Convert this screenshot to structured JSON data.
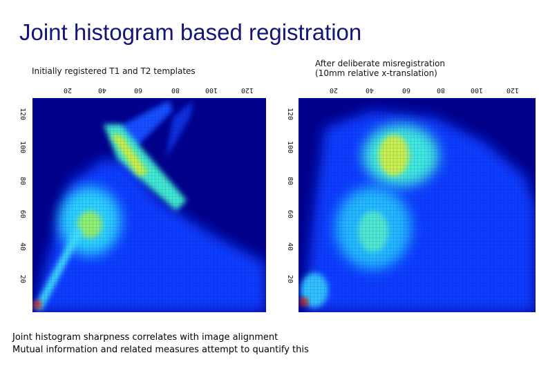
{
  "title": "Joint histogram based registration",
  "panels": [
    {
      "caption": [
        "Initially registered T1 and T2 templates"
      ],
      "top_ticks": [
        20,
        40,
        60,
        80,
        100,
        120
      ],
      "side_ticks": [
        120,
        100,
        80,
        60,
        40,
        20
      ]
    },
    {
      "caption": [
        "After deliberate misregistration",
        "(10mm relative x-translation)"
      ],
      "top_ticks": [
        20,
        40,
        60,
        80,
        100,
        120
      ],
      "side_ticks": [
        120,
        100,
        80,
        60,
        40,
        20
      ]
    }
  ],
  "notes": [
    "Joint histogram sharpness correlates with image alignment",
    "Mutual information and related measures attempt to quantify this"
  ]
}
